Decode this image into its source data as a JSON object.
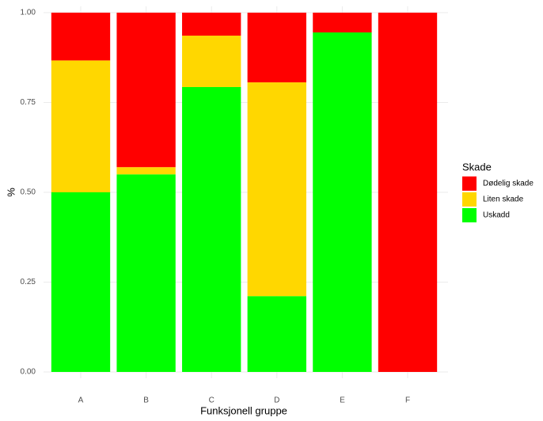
{
  "chart_data": {
    "type": "stacked_bar",
    "x_label": "Funksjonell gruppe",
    "y_label": "%",
    "categories": [
      "A",
      "B",
      "C",
      "D",
      "E",
      "F"
    ],
    "series": [
      {
        "name": "Dødelig skade",
        "color": "#ff0000",
        "values": [
          0.133,
          0.43,
          0.064,
          0.194,
          0.055,
          1
        ]
      },
      {
        "name": "Liten skade",
        "color": "#ffd700",
        "values": [
          0.367,
          0.02,
          0.143,
          0.595,
          0,
          0
        ]
      },
      {
        "name": "Uskadd",
        "color": "#00ff00",
        "values": [
          0.5,
          0.55,
          0.793,
          0.211,
          0.945,
          0
        ]
      }
    ],
    "ylim": [
      0,
      1
    ],
    "yticks": [
      {
        "value": 0,
        "label": "0.00"
      },
      {
        "value": 0.25,
        "label": "0.25"
      },
      {
        "value": 0.5,
        "label": "0.50"
      },
      {
        "value": 0.75,
        "label": "0.75"
      },
      {
        "value": 1,
        "label": "1.00"
      }
    ],
    "legend_title": "Skade",
    "legend_position": "right",
    "grid": true
  }
}
